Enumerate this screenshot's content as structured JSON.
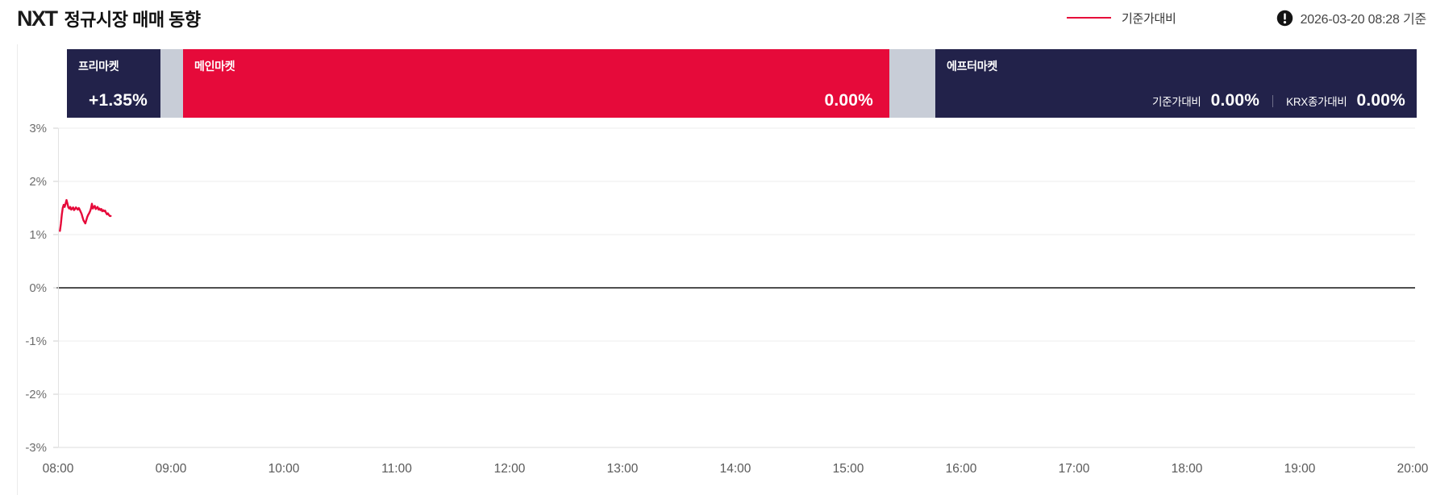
{
  "header": {
    "logo": "NXT",
    "title": "정규시장 매매 동향",
    "legend_label": "기준가대비",
    "timestamp": "2026-03-20 08:28 기준"
  },
  "market_bar": {
    "pre": {
      "label": "프리마켓",
      "value": "+1.35%"
    },
    "main": {
      "label": "메인마켓",
      "value": "0.00%"
    },
    "after": {
      "label": "에프터마켓",
      "metrics": [
        {
          "label": "기준가대비",
          "value": "0.00%"
        },
        {
          "label": "KRX종가대비",
          "value": "0.00%"
        }
      ]
    }
  },
  "colors": {
    "navy": "#22224a",
    "red": "#e60a3a",
    "gap_gray": "#c8cdd7",
    "zero_line": "#4f4f4f",
    "gridline": "#ededed",
    "axis_line": "#e3e3e3",
    "y_label": "#6e6e6e",
    "x_label": "#595959"
  },
  "chart_data": {
    "type": "line",
    "title": "NXT 정규시장 매매 동향",
    "xlabel": "",
    "ylabel": "",
    "x_ticks": [
      "08:00",
      "09:00",
      "10:00",
      "11:00",
      "12:00",
      "13:00",
      "14:00",
      "15:00",
      "16:00",
      "17:00",
      "18:00",
      "19:00",
      "20:00"
    ],
    "x_range_minutes": [
      0,
      720
    ],
    "y_ticks": [
      {
        "value": 3,
        "label": "3%"
      },
      {
        "value": 2,
        "label": "2%"
      },
      {
        "value": 1,
        "label": "1%"
      },
      {
        "value": 0,
        "label": "0%"
      },
      {
        "value": -1,
        "label": "-1%"
      },
      {
        "value": -2,
        "label": "-2%"
      },
      {
        "value": -3,
        "label": "-3%"
      }
    ],
    "y_range": [
      -3,
      3
    ],
    "zero_line": true,
    "grid": true,
    "legend_position": "top-right",
    "series": [
      {
        "name": "기준가대비",
        "color": "#e60a3a",
        "points_min_pct": [
          [
            1,
            1.07
          ],
          [
            1.5,
            1.2
          ],
          [
            2,
            1.38
          ],
          [
            2.5,
            1.5
          ],
          [
            3,
            1.56
          ],
          [
            3.5,
            1.52
          ],
          [
            4,
            1.58
          ],
          [
            4.5,
            1.65
          ],
          [
            5,
            1.58
          ],
          [
            5.5,
            1.51
          ],
          [
            6,
            1.49
          ],
          [
            6.5,
            1.52
          ],
          [
            7,
            1.47
          ],
          [
            7.5,
            1.49
          ],
          [
            8,
            1.51
          ],
          [
            8.5,
            1.46
          ],
          [
            9,
            1.48
          ],
          [
            9.5,
            1.51
          ],
          [
            10,
            1.49
          ],
          [
            10.5,
            1.47
          ],
          [
            11,
            1.5
          ],
          [
            11.5,
            1.47
          ],
          [
            12,
            1.43
          ],
          [
            12.5,
            1.39
          ],
          [
            13,
            1.33
          ],
          [
            13.5,
            1.27
          ],
          [
            14,
            1.24
          ],
          [
            14.5,
            1.21
          ],
          [
            15,
            1.27
          ],
          [
            15.5,
            1.33
          ],
          [
            16,
            1.37
          ],
          [
            16.5,
            1.4
          ],
          [
            17,
            1.44
          ],
          [
            17.5,
            1.49
          ],
          [
            18,
            1.58
          ],
          [
            18.5,
            1.49
          ],
          [
            19,
            1.52
          ],
          [
            19.5,
            1.54
          ],
          [
            20,
            1.48
          ],
          [
            20.5,
            1.5
          ],
          [
            21,
            1.52
          ],
          [
            21.5,
            1.47
          ],
          [
            22,
            1.49
          ],
          [
            22.5,
            1.46
          ],
          [
            23,
            1.48
          ],
          [
            23.5,
            1.44
          ],
          [
            24,
            1.46
          ],
          [
            24.5,
            1.44
          ],
          [
            25,
            1.45
          ],
          [
            25.5,
            1.41
          ],
          [
            26,
            1.38
          ],
          [
            26.5,
            1.4
          ],
          [
            27,
            1.37
          ],
          [
            27.5,
            1.35
          ],
          [
            28,
            1.35
          ]
        ]
      }
    ]
  }
}
